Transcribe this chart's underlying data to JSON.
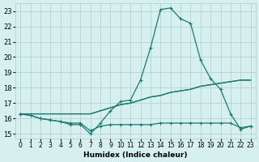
{
  "xlabel": "Humidex (Indice chaleur)",
  "ylabel": "",
  "background_color": "#d6f0f0",
  "grid_color": "#b0cccc",
  "line_color": "#1a7a6e",
  "x_values": [
    0,
    1,
    2,
    3,
    4,
    5,
    6,
    7,
    8,
    9,
    10,
    11,
    12,
    13,
    14,
    15,
    16,
    17,
    18,
    19,
    20,
    21,
    22,
    23
  ],
  "line1_y": [
    16.3,
    16.2,
    16.0,
    15.9,
    15.8,
    15.6,
    15.6,
    15.0,
    15.7,
    16.5,
    17.1,
    17.2,
    18.5,
    20.6,
    23.1,
    23.2,
    22.5,
    22.2,
    19.8,
    18.6,
    17.9,
    16.3,
    15.3,
    15.5
  ],
  "line2_y": [
    16.3,
    16.3,
    16.3,
    16.3,
    16.3,
    16.3,
    16.3,
    16.3,
    16.5,
    16.7,
    16.9,
    17.0,
    17.2,
    17.4,
    17.5,
    17.7,
    17.8,
    17.9,
    18.1,
    18.2,
    18.3,
    18.4,
    18.5,
    18.5
  ],
  "line3_y": [
    16.3,
    16.3,
    16.3,
    16.3,
    16.3,
    16.3,
    16.3,
    16.3,
    16.5,
    16.7,
    16.9,
    17.0,
    17.2,
    17.4,
    17.5,
    17.7,
    17.8,
    17.9,
    18.1,
    18.2,
    18.3,
    18.4,
    18.5,
    18.5
  ],
  "line4_y": [
    16.3,
    16.2,
    16.0,
    15.9,
    15.8,
    15.7,
    15.7,
    15.2,
    15.5,
    15.6,
    15.6,
    15.6,
    15.6,
    15.6,
    15.7,
    15.7,
    15.7,
    15.7,
    15.7,
    15.7,
    15.7,
    15.7,
    15.4,
    15.5
  ],
  "ylim": [
    14.7,
    23.5
  ],
  "yticks": [
    15,
    16,
    17,
    18,
    19,
    20,
    21,
    22,
    23
  ],
  "xticks": [
    0,
    1,
    2,
    3,
    4,
    5,
    6,
    7,
    8,
    9,
    10,
    11,
    12,
    13,
    14,
    15,
    16,
    17,
    18,
    19,
    20,
    21,
    22,
    23
  ],
  "xtick_labels": [
    "0",
    "1",
    "2",
    "3",
    "4",
    "5",
    "6",
    "7",
    "8",
    "9",
    "10",
    "11",
    "12",
    "13",
    "14",
    "15",
    "16",
    "17",
    "18",
    "19",
    "20",
    "21",
    "22",
    "23"
  ],
  "marker": "+"
}
